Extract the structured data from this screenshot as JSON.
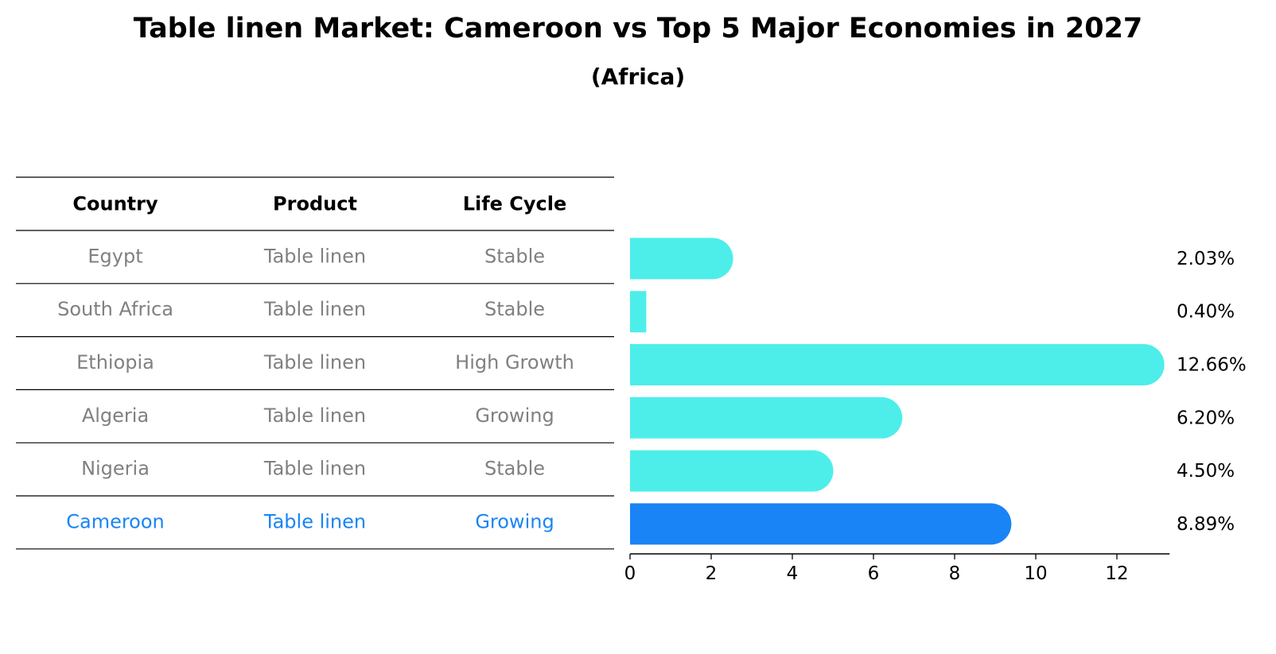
{
  "title": "Table linen Market: Cameroon vs Top 5 Major Economies in 2027",
  "subtitle": "(Africa)",
  "colors": {
    "bar": "#4DEEEA",
    "highlight_bar": "#1984F5",
    "muted_text": "#808080",
    "highlight_text": "#1984F5"
  },
  "table": {
    "headers": [
      "Country",
      "Product",
      "Life Cycle"
    ],
    "rows": [
      {
        "country": "Egypt",
        "product": "Table linen",
        "life_cycle": "Stable",
        "highlight": false
      },
      {
        "country": "South Africa",
        "product": "Table linen",
        "life_cycle": "Stable",
        "highlight": false
      },
      {
        "country": "Ethiopia",
        "product": "Table linen",
        "life_cycle": "High Growth",
        "highlight": false
      },
      {
        "country": "Algeria",
        "product": "Table linen",
        "life_cycle": "Growing",
        "highlight": false
      },
      {
        "country": "Nigeria",
        "product": "Table linen",
        "life_cycle": "Stable",
        "highlight": false
      },
      {
        "country": "Cameroon",
        "product": "Table linen",
        "life_cycle": "Growing",
        "highlight": true
      }
    ]
  },
  "chart_data": {
    "type": "bar",
    "orientation": "horizontal",
    "categories": [
      "Egypt",
      "South Africa",
      "Ethiopia",
      "Algeria",
      "Nigeria",
      "Cameroon"
    ],
    "values": [
      2.03,
      0.4,
      12.66,
      6.2,
      4.5,
      8.89
    ],
    "value_labels": [
      "2.03%",
      "0.40%",
      "12.66%",
      "6.20%",
      "4.50%",
      "8.89%"
    ],
    "highlight_category": "Cameroon",
    "xlim": [
      0,
      13.3
    ],
    "xticks": [
      0,
      2,
      4,
      6,
      8,
      10,
      12
    ],
    "grid": false
  }
}
